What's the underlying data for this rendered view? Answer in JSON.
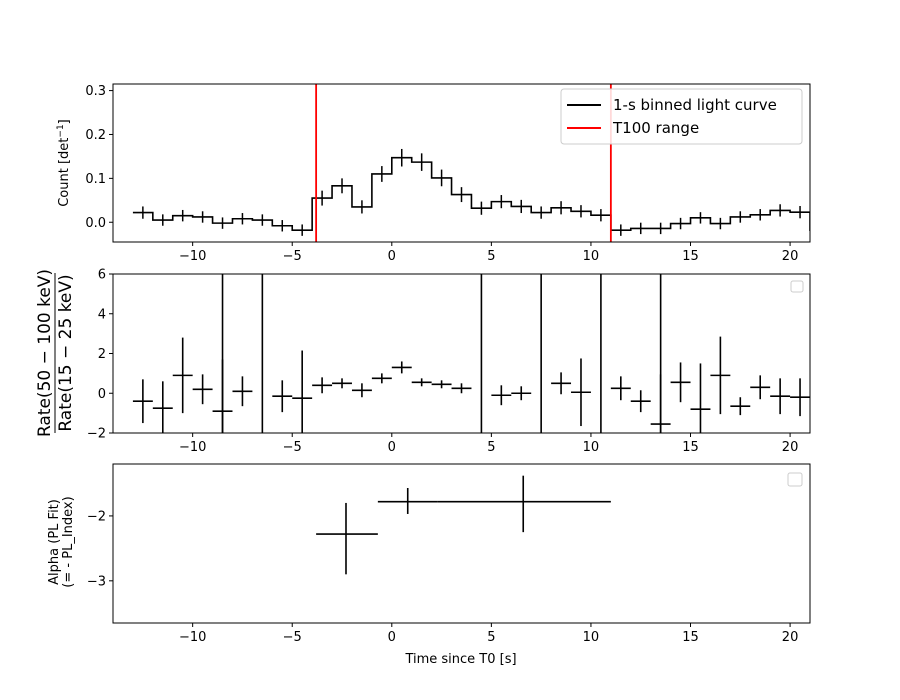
{
  "colors": {
    "data": "#000000",
    "t100": "#ff0000"
  },
  "chart_data": [
    {
      "type": "line",
      "panel": "light-curve",
      "xlim": [
        -14,
        21
      ],
      "ylim": [
        -0.045,
        0.315
      ],
      "xticks": [
        -10,
        -5,
        0,
        5,
        10,
        15,
        20
      ],
      "xtick_labels": [
        "−10",
        "−5",
        "0",
        "5",
        "10",
        "15",
        "20"
      ],
      "yticks": [
        0.0,
        0.1,
        0.2,
        0.3
      ],
      "ytick_labels": [
        "0.0",
        "0.1",
        "0.2",
        "0.3"
      ],
      "ylabel": {
        "text": "Count [det",
        "sup": "−1",
        "tail": "]"
      },
      "legend": [
        "1-s binned light curve",
        "T100 range"
      ],
      "legend_position": "upper right",
      "t100_range": [
        -3.8,
        11.0
      ],
      "series": [
        {
          "name": "1-s binned light curve",
          "style": "step",
          "x": [
            -12.5,
            -11.5,
            -10.5,
            -9.5,
            -8.5,
            -7.5,
            -6.5,
            -5.5,
            -4.5,
            -3.5,
            -2.5,
            -1.5,
            -0.5,
            0.5,
            1.5,
            2.5,
            3.5,
            4.5,
            5.5,
            6.5,
            7.5,
            8.5,
            9.5,
            10.5,
            11.5,
            12.5,
            13.5,
            14.5,
            15.5,
            16.5,
            17.5,
            18.5,
            19.5,
            20.5
          ],
          "y": [
            0.022,
            0.005,
            0.015,
            0.012,
            -0.002,
            0.008,
            0.005,
            -0.008,
            -0.018,
            0.055,
            0.083,
            0.035,
            0.11,
            0.147,
            0.137,
            0.101,
            0.063,
            0.032,
            0.047,
            0.036,
            0.022,
            0.033,
            0.025,
            0.016,
            -0.018,
            -0.014,
            -0.014,
            -0.003,
            0.01,
            -0.003,
            0.012,
            0.017,
            0.027,
            0.023
          ],
          "yerr": [
            0.014,
            0.013,
            0.013,
            0.013,
            0.013,
            0.013,
            0.013,
            0.013,
            0.013,
            0.017,
            0.017,
            0.015,
            0.018,
            0.02,
            0.02,
            0.019,
            0.017,
            0.015,
            0.015,
            0.015,
            0.014,
            0.015,
            0.014,
            0.014,
            0.013,
            0.013,
            0.013,
            0.013,
            0.013,
            0.013,
            0.013,
            0.013,
            0.014,
            0.014
          ]
        }
      ]
    },
    {
      "type": "scatter",
      "panel": "hardness-ratio",
      "xlim": [
        -14,
        21
      ],
      "ylim": [
        -2,
        6
      ],
      "xticks": [
        -10,
        -5,
        0,
        5,
        10,
        15,
        20
      ],
      "xtick_labels": [
        "−10",
        "−5",
        "0",
        "5",
        "10",
        "15",
        "20"
      ],
      "yticks": [
        -2,
        0,
        2,
        4,
        6
      ],
      "ytick_labels": [
        "−2",
        "0",
        "2",
        "4",
        "6"
      ],
      "ylabel": {
        "numerator": "Rate(50 − 100 keV)",
        "denominator": "Rate(15 − 25 keV)"
      },
      "legend": [],
      "legend_position": "upper right",
      "points": {
        "x": [
          -12.5,
          -11.5,
          -10.5,
          -9.5,
          -8.5,
          -7.5,
          -5.5,
          -4.5,
          -3.5,
          -2.5,
          -1.5,
          -0.5,
          0.5,
          1.5,
          2.5,
          3.5,
          5.5,
          6.5,
          8.5,
          9.5,
          11.5,
          12.5,
          13.5,
          14.5,
          15.5,
          16.5,
          17.5,
          18.5,
          19.5,
          20.5
        ],
        "y": [
          -0.4,
          -0.75,
          0.9,
          0.2,
          -0.9,
          0.1,
          -0.15,
          -0.25,
          0.4,
          0.5,
          0.15,
          0.75,
          1.3,
          0.55,
          0.45,
          0.25,
          -0.1,
          0.0,
          0.5,
          0.05,
          0.25,
          -0.4,
          -1.55,
          0.55,
          -0.8,
          0.9,
          -0.65,
          0.3,
          -0.15,
          -0.2
        ],
        "yerr": [
          1.1,
          1.35,
          1.9,
          0.75,
          2.6,
          0.75,
          0.8,
          2.4,
          0.4,
          0.25,
          0.35,
          0.25,
          0.3,
          0.2,
          0.2,
          0.25,
          0.5,
          0.35,
          0.55,
          1.7,
          0.6,
          0.55,
          2.5,
          1.0,
          2.3,
          1.95,
          0.45,
          0.6,
          0.9,
          0.95
        ]
      },
      "full_range_vertical_bars_x": [
        -8.5,
        -6.5,
        4.5,
        7.5,
        10.5,
        13.5
      ]
    },
    {
      "type": "scatter",
      "panel": "photon-index",
      "xlim": [
        -14,
        21
      ],
      "ylim": [
        -3.65,
        -1.2
      ],
      "xticks": [
        -10,
        -5,
        0,
        5,
        10,
        15,
        20
      ],
      "xtick_labels": [
        "−10",
        "−5",
        "0",
        "5",
        "10",
        "15",
        "20"
      ],
      "yticks": [
        -3,
        -2
      ],
      "ytick_labels": [
        "−3",
        "−2"
      ],
      "ylabel": {
        "line1": "Alpha (PL Fit)",
        "line2": "(= - PL_Index)"
      },
      "xlabel": "Time since T0 [s]",
      "legend": [],
      "legend_position": "upper right",
      "points": [
        {
          "x": -2.3,
          "xlo": -3.8,
          "xhi": -0.7,
          "y": -2.28,
          "ylo": -2.9,
          "yhi": -1.8
        },
        {
          "x": 0.8,
          "xlo": -0.7,
          "xhi": 2.3,
          "y": -1.78,
          "ylo": -1.97,
          "yhi": -1.57
        },
        {
          "x": 6.6,
          "xlo": 2.3,
          "xhi": 11.0,
          "y": -1.78,
          "ylo": -2.25,
          "yhi": -1.38
        }
      ]
    }
  ]
}
